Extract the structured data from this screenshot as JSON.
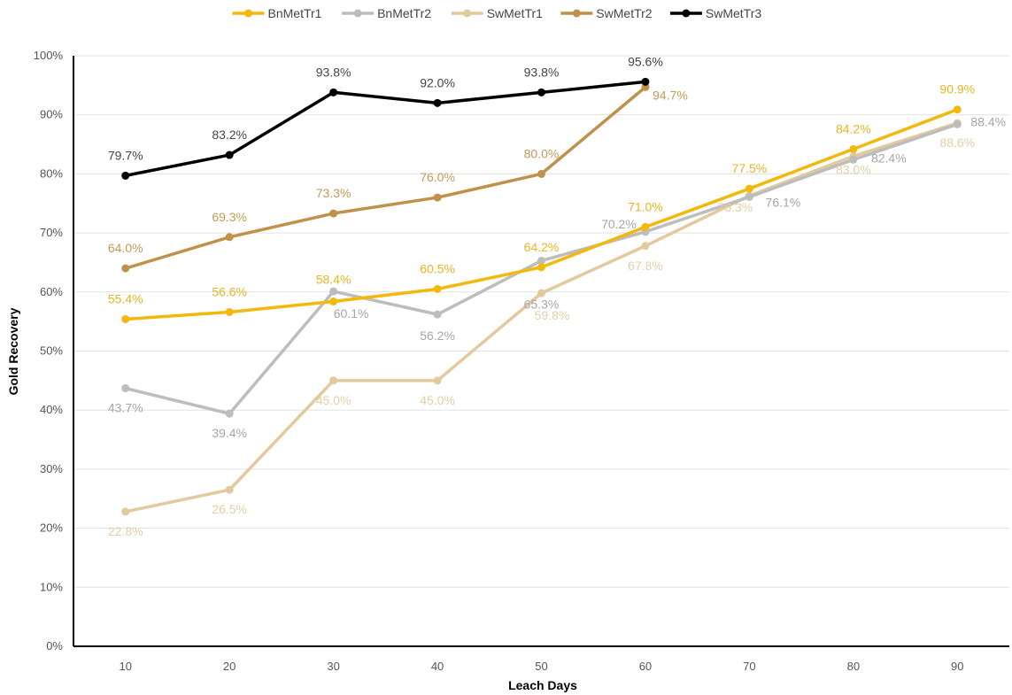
{
  "chart_data": {
    "type": "line",
    "title": "",
    "xlabel": "Leach Days",
    "ylabel": "Gold Recovery",
    "x": [
      10,
      20,
      30,
      40,
      50,
      60,
      70,
      80,
      90
    ],
    "ylim": [
      0,
      100
    ],
    "y_ticks": [
      "0%",
      "10%",
      "20%",
      "30%",
      "40%",
      "50%",
      "60%",
      "70%",
      "80%",
      "90%",
      "100%"
    ],
    "x_ticks": [
      "10",
      "20",
      "30",
      "40",
      "50",
      "60",
      "70",
      "80",
      "90"
    ],
    "grid": "horizontal",
    "legend_position": "top-center",
    "series": [
      {
        "name": "BnMetTr1",
        "color": "#f2b90c",
        "label_color": "#e9b520",
        "points": [
          [
            10,
            55.4
          ],
          [
            20,
            56.6
          ],
          [
            30,
            58.4
          ],
          [
            40,
            60.5
          ],
          [
            50,
            64.2
          ],
          [
            60,
            71.0
          ],
          [
            70,
            77.5
          ],
          [
            80,
            84.2
          ],
          [
            90,
            90.9
          ]
        ],
        "labels": [
          "55.4%",
          "56.6%",
          "58.4%",
          "60.5%",
          "64.2%",
          "71.0%",
          "77.5%",
          "84.2%",
          "90.9%"
        ]
      },
      {
        "name": "BnMetTr2",
        "color": "#bdbdbd",
        "label_color": "#a6a6a6",
        "points": [
          [
            10,
            43.7
          ],
          [
            20,
            39.4
          ],
          [
            30,
            60.1
          ],
          [
            40,
            56.2
          ],
          [
            50,
            65.3
          ],
          [
            60,
            70.2
          ],
          [
            70,
            76.1
          ],
          [
            80,
            82.4
          ],
          [
            90,
            88.4
          ]
        ],
        "labels": [
          "43.7%",
          "39.4%",
          "60.1%",
          "56.2%",
          "65.3%",
          "70.2%",
          "76.1%",
          "82.4%",
          "88.4%"
        ]
      },
      {
        "name": "SwMetTr1",
        "color": "#e3c99e",
        "label_color": "#e3cfa6",
        "points": [
          [
            10,
            22.8
          ],
          [
            20,
            26.5
          ],
          [
            30,
            45.0
          ],
          [
            40,
            45.0
          ],
          [
            50,
            59.8
          ],
          [
            60,
            67.8
          ],
          [
            70,
            76.3
          ],
          [
            80,
            83.0
          ],
          [
            90,
            88.6
          ]
        ],
        "labels": [
          "22.8%",
          "26.5%",
          "45.0%",
          "45.0%",
          "59.8%",
          "67.8%",
          "76.3%",
          "83.0%",
          "88.6%"
        ]
      },
      {
        "name": "SwMetTr2",
        "color": "#bf914a",
        "label_color": "#c29a57",
        "points": [
          [
            10,
            64.0
          ],
          [
            20,
            69.3
          ],
          [
            30,
            73.3
          ],
          [
            40,
            76.0
          ],
          [
            50,
            80.0
          ],
          [
            60,
            94.7
          ]
        ],
        "labels": [
          "64.0%",
          "69.3%",
          "73.3%",
          "76.0%",
          "80.0%",
          "94.7%"
        ]
      },
      {
        "name": "SwMetTr3",
        "color": "#000000",
        "label_color": "#444444",
        "points": [
          [
            10,
            79.7
          ],
          [
            20,
            83.2
          ],
          [
            30,
            93.8
          ],
          [
            40,
            92.0
          ],
          [
            50,
            93.8
          ],
          [
            60,
            95.6
          ]
        ],
        "labels": [
          "79.7%",
          "83.2%",
          "93.8%",
          "92.0%",
          "93.8%",
          "95.6%"
        ]
      }
    ]
  }
}
